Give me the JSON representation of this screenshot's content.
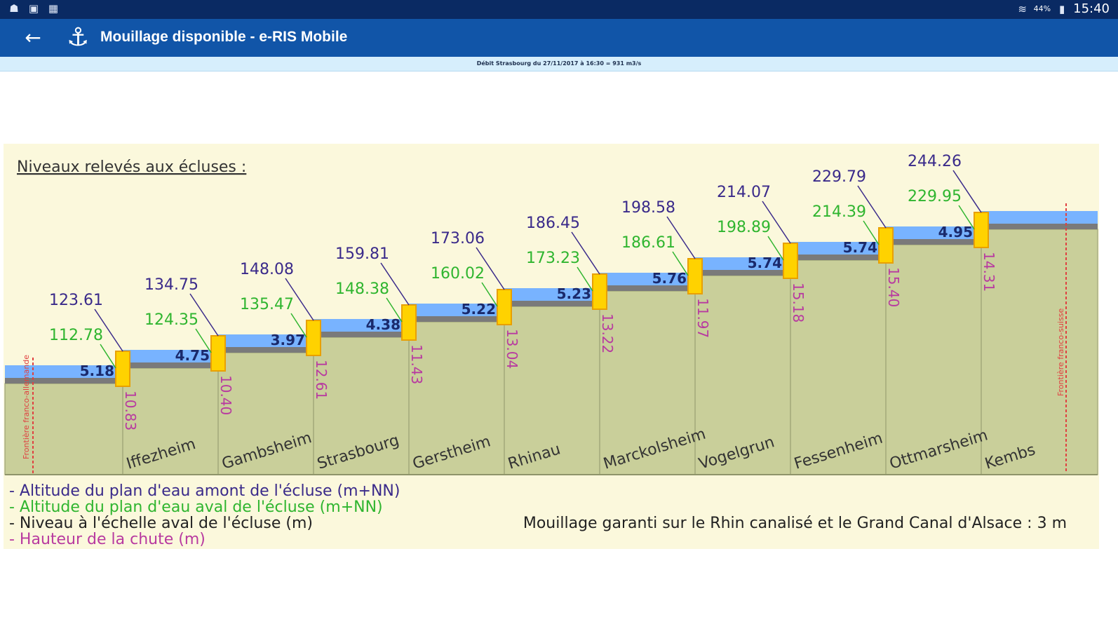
{
  "status_bar": {
    "icons": [
      "image-icon",
      "tablet-icon",
      "grid-icon"
    ],
    "battery_text": "44%",
    "time": "15:40"
  },
  "app_bar": {
    "title": "Mouillage disponible - e-RIS Mobile",
    "back_icon": "arrow-left-icon",
    "logo_icon": "anchor-icon"
  },
  "info_bar": {
    "text": "Débit Strasbourg du 27/11/2017 à 16:30 = 931 m3/s"
  },
  "chart_data": {
    "type": "diagram",
    "title": "Niveaux relevés aux écluses :",
    "locks": [
      {
        "name": "Iffezheim",
        "upstream_altitude": 123.61,
        "downstream_altitude": 112.78,
        "downstream_gauge": 5.18,
        "fall_height": 10.83
      },
      {
        "name": "Gambsheim",
        "upstream_altitude": 134.75,
        "downstream_altitude": 124.35,
        "downstream_gauge": 4.75,
        "fall_height": 10.4
      },
      {
        "name": "Strasbourg",
        "upstream_altitude": 148.08,
        "downstream_altitude": 135.47,
        "downstream_gauge": 3.97,
        "fall_height": 12.61
      },
      {
        "name": "Gerstheim",
        "upstream_altitude": 159.81,
        "downstream_altitude": 148.38,
        "downstream_gauge": 4.38,
        "fall_height": 11.43
      },
      {
        "name": "Rhinau",
        "upstream_altitude": 173.06,
        "downstream_altitude": 160.02,
        "downstream_gauge": 5.22,
        "fall_height": 13.04
      },
      {
        "name": "Marckolsheim",
        "upstream_altitude": 186.45,
        "downstream_altitude": 173.23,
        "downstream_gauge": 5.23,
        "fall_height": 13.22
      },
      {
        "name": "Vogelgrun",
        "upstream_altitude": 198.58,
        "downstream_altitude": 186.61,
        "downstream_gauge": 5.76,
        "fall_height": 11.97
      },
      {
        "name": "Fessenheim",
        "upstream_altitude": 214.07,
        "downstream_altitude": 198.89,
        "downstream_gauge": 5.74,
        "fall_height": 15.18
      },
      {
        "name": "Ottmarsheim",
        "upstream_altitude": 229.79,
        "downstream_altitude": 214.39,
        "downstream_gauge": 5.74,
        "fall_height": 15.4
      },
      {
        "name": "Kembs",
        "upstream_altitude": 244.26,
        "downstream_altitude": 229.95,
        "downstream_gauge": 4.95,
        "fall_height": 14.31
      }
    ],
    "borders": {
      "left": "Frontière franco-allemande",
      "right": "Frontière franco-suisse"
    },
    "legend": [
      {
        "text": "- Altitude du plan d'eau amont de l'écluse (m+NN)",
        "color": "#3a2a8a"
      },
      {
        "text": "- Altitude du plan d'eau aval de l'écluse (m+NN)",
        "color": "#2fb52f"
      },
      {
        "text": "- Niveau à l'échelle aval de l'écluse (m)",
        "color": "#222222"
      },
      {
        "text": "- Hauteur de la chute (m)",
        "color": "#b83aa0"
      }
    ],
    "note": "Mouillage garanti sur le Rhin canalisé et le Grand Canal d'Alsace : 3 m",
    "colors": {
      "background": "#fbf8dc",
      "ground": "#c9cf9a",
      "water": "#78b3ff",
      "river_bed": "#7a7a7a",
      "lock_gate": "#ffd200",
      "upstream": "#3a2a8a",
      "downstream": "#2fb52f",
      "gauge": "#1a2a6c",
      "fall": "#b83aa0",
      "border": "#e04040"
    }
  }
}
